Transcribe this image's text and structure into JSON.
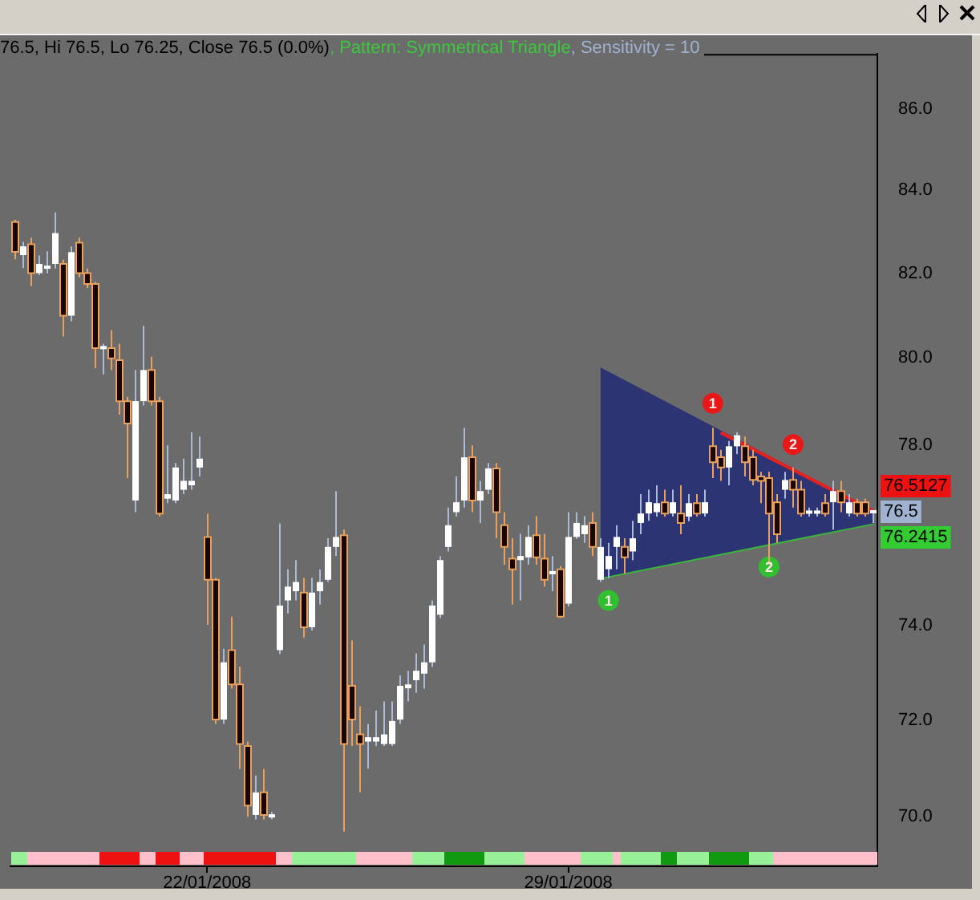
{
  "chart_data": {
    "type": "candlestick",
    "categories": [
      null,
      null,
      null,
      null,
      null,
      null,
      null,
      null,
      null,
      null,
      null,
      null,
      null,
      null,
      null,
      null,
      null,
      null,
      null,
      null,
      null,
      null,
      null,
      null,
      "22/01/2008",
      null,
      null,
      null,
      null,
      null,
      null,
      null,
      null,
      null,
      null,
      null,
      null,
      null,
      null,
      null,
      null,
      null,
      null,
      null,
      null,
      null,
      null,
      null,
      null,
      null,
      null,
      null,
      null,
      null,
      null,
      null,
      null,
      null,
      null,
      null,
      null,
      null,
      null,
      null,
      null,
      null,
      null,
      null,
      null,
      "29/01/2008",
      null,
      null,
      null,
      null,
      null,
      null,
      null,
      null,
      null,
      null,
      null,
      null,
      null,
      null,
      null,
      null,
      null,
      null,
      null,
      null,
      null,
      null,
      null,
      null,
      null,
      null,
      null,
      null,
      null,
      null,
      null,
      null,
      null,
      null,
      null,
      null,
      null,
      null
    ],
    "ohlc": [
      [
        83.23,
        83.28,
        82.33,
        82.51
      ],
      [
        82.43,
        82.75,
        82.12,
        82.64
      ],
      [
        82.69,
        82.85,
        81.69,
        82.0
      ],
      [
        82.0,
        82.42,
        81.95,
        82.22
      ],
      [
        82.11,
        82.52,
        81.99,
        82.17
      ],
      [
        82.22,
        83.46,
        82.11,
        82.96
      ],
      [
        82.22,
        82.32,
        80.5,
        80.99
      ],
      [
        80.99,
        82.64,
        80.86,
        82.5
      ],
      [
        82.73,
        82.85,
        81.9,
        82.0
      ],
      [
        82.0,
        82.11,
        81.64,
        81.74
      ],
      [
        81.74,
        81.79,
        79.76,
        80.23
      ],
      [
        80.23,
        80.33,
        79.62,
        80.25
      ],
      [
        80.23,
        80.65,
        79.72,
        79.99
      ],
      [
        79.95,
        80.33,
        78.69,
        79.0
      ],
      [
        79.0,
        79.1,
        77.25,
        78.49
      ],
      [
        76.75,
        79.72,
        76.49,
        79.0
      ],
      [
        79.0,
        80.75,
        78.9,
        79.72
      ],
      [
        79.72,
        80.03,
        78.9,
        79.0
      ],
      [
        79.0,
        79.1,
        76.39,
        76.46
      ],
      [
        76.79,
        77.99,
        76.69,
        76.89
      ],
      [
        76.75,
        77.59,
        76.69,
        77.49
      ],
      [
        76.99,
        77.69,
        76.89,
        77.19
      ],
      [
        77.09,
        78.29,
        76.99,
        77.19
      ],
      [
        77.49,
        78.19,
        77.29,
        77.69
      ],
      [
        75.94,
        76.46,
        74.02,
        75.0
      ],
      [
        75.0,
        75.04,
        71.92,
        72.01
      ],
      [
        72.01,
        73.51,
        71.92,
        73.22
      ],
      [
        73.48,
        74.2,
        72.66,
        72.75
      ],
      [
        72.75,
        73.13,
        70.98,
        71.5
      ],
      [
        71.46,
        71.55,
        70.0,
        70.23
      ],
      [
        70.04,
        70.85,
        69.95,
        70.5
      ],
      [
        70.5,
        70.98,
        69.95,
        70.04
      ],
      [
        70.0,
        70.1,
        69.95,
        70.04
      ],
      [
        73.48,
        76.24,
        73.4,
        74.44
      ],
      [
        74.55,
        75.23,
        74.27,
        74.85
      ],
      [
        74.75,
        75.43,
        74.55,
        74.95
      ],
      [
        74.72,
        75.04,
        73.75,
        73.97
      ],
      [
        73.97,
        75.04,
        73.9,
        74.72
      ],
      [
        74.75,
        75.23,
        74.46,
        74.95
      ],
      [
        75.0,
        75.91,
        74.95,
        75.72
      ],
      [
        75.72,
        76.96,
        75.52,
        75.94
      ],
      [
        75.98,
        76.1,
        69.7,
        71.5
      ],
      [
        72.72,
        73.69,
        71.46,
        72.01
      ],
      [
        71.7,
        72.29,
        70.5,
        71.5
      ],
      [
        71.55,
        71.92,
        70.99,
        71.64
      ],
      [
        71.55,
        72.2,
        71.46,
        71.64
      ],
      [
        71.5,
        72.39,
        71.46,
        71.7
      ],
      [
        71.5,
        72.39,
        71.46,
        71.98
      ],
      [
        72.01,
        72.94,
        71.92,
        72.72
      ],
      [
        72.67,
        73.04,
        72.39,
        72.75
      ],
      [
        72.84,
        73.41,
        72.57,
        73.04
      ],
      [
        72.98,
        73.6,
        72.66,
        73.22
      ],
      [
        73.22,
        74.55,
        73.12,
        74.44
      ],
      [
        74.24,
        75.52,
        74.17,
        75.43
      ],
      [
        75.72,
        76.59,
        75.62,
        76.2
      ],
      [
        76.49,
        77.29,
        76.39,
        76.71
      ],
      [
        76.75,
        78.39,
        76.59,
        77.72
      ],
      [
        77.72,
        77.99,
        76.49,
        76.75
      ],
      [
        76.75,
        77.19,
        76.25,
        76.96
      ],
      [
        76.99,
        77.59,
        76.89,
        77.47
      ],
      [
        77.47,
        77.59,
        75.91,
        76.49
      ],
      [
        76.2,
        76.49,
        75.33,
        75.72
      ],
      [
        75.46,
        75.91,
        74.46,
        75.23
      ],
      [
        75.43,
        76.01,
        74.55,
        75.52
      ],
      [
        75.49,
        76.2,
        75.33,
        75.94
      ],
      [
        75.98,
        76.4,
        75.33,
        75.49
      ],
      [
        75.46,
        76.01,
        74.85,
        75.0
      ],
      [
        75.13,
        75.52,
        74.75,
        75.18
      ],
      [
        75.23,
        75.3,
        74.17,
        74.2
      ],
      [
        74.48,
        76.49,
        74.42,
        75.94
      ],
      [
        75.94,
        76.49,
        75.9,
        76.25
      ],
      [
        76.0,
        76.4,
        75.81,
        76.2
      ],
      [
        76.25,
        76.49,
        75.52,
        75.72
      ],
      [
        75.0,
        75.91,
        74.95,
        75.72
      ],
      [
        75.23,
        75.81,
        75.04,
        75.52
      ],
      [
        75.72,
        76.2,
        75.23,
        75.94
      ],
      [
        75.72,
        75.91,
        75.13,
        75.49
      ],
      [
        75.62,
        76.3,
        75.43,
        75.91
      ],
      [
        76.25,
        76.89,
        76.0,
        76.46
      ],
      [
        76.46,
        76.99,
        76.3,
        76.71
      ],
      [
        76.49,
        77.09,
        76.39,
        76.69
      ],
      [
        76.71,
        76.99,
        76.39,
        76.46
      ],
      [
        76.46,
        76.99,
        76.39,
        76.71
      ],
      [
        76.46,
        77.09,
        76.0,
        76.25
      ],
      [
        76.39,
        76.89,
        76.29,
        76.69
      ],
      [
        76.69,
        76.89,
        76.39,
        76.46
      ],
      [
        76.46,
        76.99,
        76.39,
        76.71
      ],
      [
        77.97,
        78.39,
        77.25,
        77.61
      ],
      [
        77.72,
        77.89,
        77.19,
        77.49
      ],
      [
        77.49,
        78.09,
        77.09,
        77.97
      ],
      [
        77.97,
        78.29,
        77.79,
        78.22
      ],
      [
        77.97,
        78.19,
        77.29,
        77.61
      ],
      [
        77.72,
        77.89,
        77.09,
        77.21
      ],
      [
        77.29,
        77.39,
        76.69,
        77.19
      ],
      [
        77.25,
        77.39,
        75.33,
        76.46
      ],
      [
        76.71,
        76.89,
        75.81,
        76.0
      ],
      [
        76.99,
        77.39,
        76.79,
        77.21
      ],
      [
        77.21,
        77.49,
        76.59,
        76.99
      ],
      [
        76.99,
        77.19,
        76.39,
        76.46
      ],
      [
        76.49,
        76.59,
        76.39,
        76.49
      ],
      [
        76.49,
        76.59,
        76.39,
        76.49
      ],
      [
        76.69,
        76.89,
        76.39,
        76.46
      ],
      [
        76.71,
        77.19,
        76.1,
        76.96
      ],
      [
        76.96,
        77.19,
        76.49,
        76.71
      ],
      [
        76.46,
        76.89,
        76.39,
        76.71
      ],
      [
        76.71,
        76.79,
        76.39,
        76.46
      ],
      [
        76.71,
        76.79,
        76.39,
        76.46
      ],
      [
        76.5,
        76.5,
        76.25,
        76.5
      ]
    ],
    "series": [
      {
        "type": "line",
        "color": "#3cb43c",
        "values": [
          null,
          null,
          null,
          null,
          null,
          null,
          null,
          null,
          null,
          null,
          null,
          null,
          null,
          null,
          null,
          null,
          null,
          null,
          null,
          null,
          null,
          null,
          null,
          null,
          null,
          null,
          null,
          null,
          null,
          null,
          null,
          null,
          null,
          null,
          null,
          null,
          null,
          null,
          null,
          null,
          null,
          null,
          null,
          null,
          null,
          null,
          null,
          null,
          null,
          null,
          null,
          null,
          null,
          null,
          null,
          null,
          null,
          null,
          null,
          null,
          null,
          null,
          null,
          null,
          null,
          null,
          null,
          null,
          null,
          null,
          null,
          null,
          null,
          75.04,
          null,
          null,
          null,
          null,
          null,
          null,
          null,
          null,
          null,
          null,
          null,
          null,
          null,
          null,
          null,
          null,
          null,
          null,
          null,
          null,
          null,
          null,
          null,
          null,
          null,
          null,
          null,
          null,
          null,
          null,
          null,
          null,
          null,
          76.2415
        ]
      },
      {
        "type": "area",
        "color": "#2d3473",
        "values": [
          null,
          null,
          null,
          null,
          null,
          null,
          null,
          null,
          null,
          null,
          null,
          null,
          null,
          null,
          null,
          null,
          null,
          null,
          null,
          null,
          null,
          null,
          null,
          null,
          null,
          null,
          null,
          null,
          null,
          null,
          null,
          null,
          null,
          null,
          null,
          null,
          null,
          null,
          null,
          null,
          null,
          null,
          null,
          null,
          null,
          null,
          null,
          null,
          null,
          null,
          null,
          null,
          null,
          null,
          null,
          null,
          null,
          null,
          null,
          null,
          null,
          null,
          null,
          null,
          null,
          null,
          null,
          null,
          null,
          null,
          null,
          null,
          null,
          79.76,
          null,
          null,
          null,
          null,
          null,
          null,
          null,
          null,
          null,
          null,
          null,
          null,
          null,
          null,
          null,
          null,
          null,
          null,
          null,
          null,
          null,
          null,
          null,
          null,
          null,
          null,
          null,
          null,
          null,
          null,
          null,
          null,
          null,
          76.5127
        ]
      },
      {
        "type": "line",
        "color": "#e82020",
        "values": [
          null,
          null,
          null,
          null,
          null,
          null,
          null,
          null,
          null,
          null,
          null,
          null,
          null,
          null,
          null,
          null,
          null,
          null,
          null,
          null,
          null,
          null,
          null,
          null,
          null,
          null,
          null,
          null,
          null,
          null,
          null,
          null,
          null,
          null,
          null,
          null,
          null,
          null,
          null,
          null,
          null,
          null,
          null,
          null,
          null,
          null,
          null,
          null,
          null,
          null,
          null,
          null,
          null,
          null,
          null,
          null,
          null,
          null,
          null,
          null,
          null,
          null,
          null,
          null,
          null,
          null,
          null,
          null,
          null,
          null,
          null,
          null,
          null,
          null,
          null,
          null,
          null,
          null,
          null,
          null,
          null,
          null,
          null,
          null,
          null,
          null,
          null,
          null,
          78.28,
          null,
          null,
          null,
          null,
          null,
          null,
          null,
          null,
          null,
          null,
          null,
          null,
          null,
          null,
          null,
          null,
          null,
          null,
          76.5127
        ]
      },
      {
        "type": "scatter",
        "name": "1",
        "color": "#e81818",
        "marker": "circle",
        "values": [
          null,
          null,
          null,
          null,
          null,
          null,
          null,
          null,
          null,
          null,
          null,
          null,
          null,
          null,
          null,
          null,
          null,
          null,
          null,
          null,
          null,
          null,
          null,
          null,
          null,
          null,
          null,
          null,
          null,
          null,
          null,
          null,
          null,
          null,
          null,
          null,
          null,
          null,
          null,
          null,
          null,
          null,
          null,
          null,
          null,
          null,
          null,
          null,
          null,
          null,
          null,
          null,
          null,
          null,
          null,
          null,
          null,
          null,
          null,
          null,
          null,
          null,
          null,
          null,
          null,
          null,
          null,
          null,
          null,
          null,
          null,
          null,
          null,
          null,
          null,
          null,
          null,
          null,
          null,
          null,
          null,
          null,
          null,
          null,
          null,
          null,
          null,
          78.95,
          null,
          null,
          null,
          null,
          null,
          null,
          null,
          null,
          null,
          null,
          null,
          null,
          null,
          null,
          null,
          null,
          null,
          null,
          null,
          null
        ]
      },
      {
        "type": "scatter",
        "name": "2",
        "color": "#e81818",
        "marker": "circle",
        "values": [
          null,
          null,
          null,
          null,
          null,
          null,
          null,
          null,
          null,
          null,
          null,
          null,
          null,
          null,
          null,
          null,
          null,
          null,
          null,
          null,
          null,
          null,
          null,
          null,
          null,
          null,
          null,
          null,
          null,
          null,
          null,
          null,
          null,
          null,
          null,
          null,
          null,
          null,
          null,
          null,
          null,
          null,
          null,
          null,
          null,
          null,
          null,
          null,
          null,
          null,
          null,
          null,
          null,
          null,
          null,
          null,
          null,
          null,
          null,
          null,
          null,
          null,
          null,
          null,
          null,
          null,
          null,
          null,
          null,
          null,
          null,
          null,
          null,
          null,
          null,
          null,
          null,
          null,
          null,
          null,
          null,
          null,
          null,
          null,
          null,
          null,
          null,
          null,
          null,
          null,
          null,
          null,
          null,
          null,
          null,
          null,
          null,
          78.01,
          null,
          null,
          null,
          null,
          null,
          null,
          null,
          null,
          null,
          null
        ]
      },
      {
        "type": "scatter",
        "name": "1",
        "color": "#2fbf2f",
        "marker": "circle",
        "values": [
          null,
          null,
          null,
          null,
          null,
          null,
          null,
          null,
          null,
          null,
          null,
          null,
          null,
          null,
          null,
          null,
          null,
          null,
          null,
          null,
          null,
          null,
          null,
          null,
          null,
          null,
          null,
          null,
          null,
          null,
          null,
          null,
          null,
          null,
          null,
          null,
          null,
          null,
          null,
          null,
          null,
          null,
          null,
          null,
          null,
          null,
          null,
          null,
          null,
          null,
          null,
          null,
          null,
          null,
          null,
          null,
          null,
          null,
          null,
          null,
          null,
          null,
          null,
          null,
          null,
          null,
          null,
          null,
          null,
          null,
          null,
          null,
          null,
          null,
          74.55,
          null,
          null,
          null,
          null,
          null,
          null,
          null,
          null,
          null,
          null,
          null,
          null,
          null,
          null,
          null,
          null,
          null,
          null,
          null,
          null,
          null,
          null,
          null,
          null,
          null,
          null,
          null,
          null,
          null,
          null,
          null,
          null,
          null
        ]
      },
      {
        "type": "scatter",
        "name": "2",
        "color": "#2fbf2f",
        "marker": "circle",
        "values": [
          null,
          null,
          null,
          null,
          null,
          null,
          null,
          null,
          null,
          null,
          null,
          null,
          null,
          null,
          null,
          null,
          null,
          null,
          null,
          null,
          null,
          null,
          null,
          null,
          null,
          null,
          null,
          null,
          null,
          null,
          null,
          null,
          null,
          null,
          null,
          null,
          null,
          null,
          null,
          null,
          null,
          null,
          null,
          null,
          null,
          null,
          null,
          null,
          null,
          null,
          null,
          null,
          null,
          null,
          null,
          null,
          null,
          null,
          null,
          null,
          null,
          null,
          null,
          null,
          null,
          null,
          null,
          null,
          null,
          null,
          null,
          null,
          null,
          null,
          null,
          null,
          null,
          null,
          null,
          null,
          null,
          null,
          null,
          null,
          null,
          null,
          null,
          null,
          null,
          null,
          null,
          null,
          null,
          null,
          75.28,
          null,
          null,
          null,
          null,
          null,
          null,
          null,
          null,
          null,
          null,
          null,
          null,
          null
        ]
      }
    ],
    "log": true,
    "ylim": [
      69.0,
      87.4
    ],
    "yticks": [
      {
        "value": 70,
        "label": "70.0"
      },
      {
        "value": 72,
        "label": "72.0"
      },
      {
        "value": 74,
        "label": "74.0"
      },
      {
        "value": 78,
        "label": "78.0"
      },
      {
        "value": 80,
        "label": "80.0"
      },
      {
        "value": 82,
        "label": "82.0"
      },
      {
        "value": 84,
        "label": "84.0"
      },
      {
        "value": 86,
        "label": "86.0"
      }
    ],
    "annotations": [
      "76.5, Hi 76.5, Lo 76.25, Close 76.5 (0.0%)",
      ", Pattern: Symmetrical Triangle",
      ", Sensitivity = 10",
      "76.5127",
      "76.5",
      "76.2415"
    ]
  }
}
